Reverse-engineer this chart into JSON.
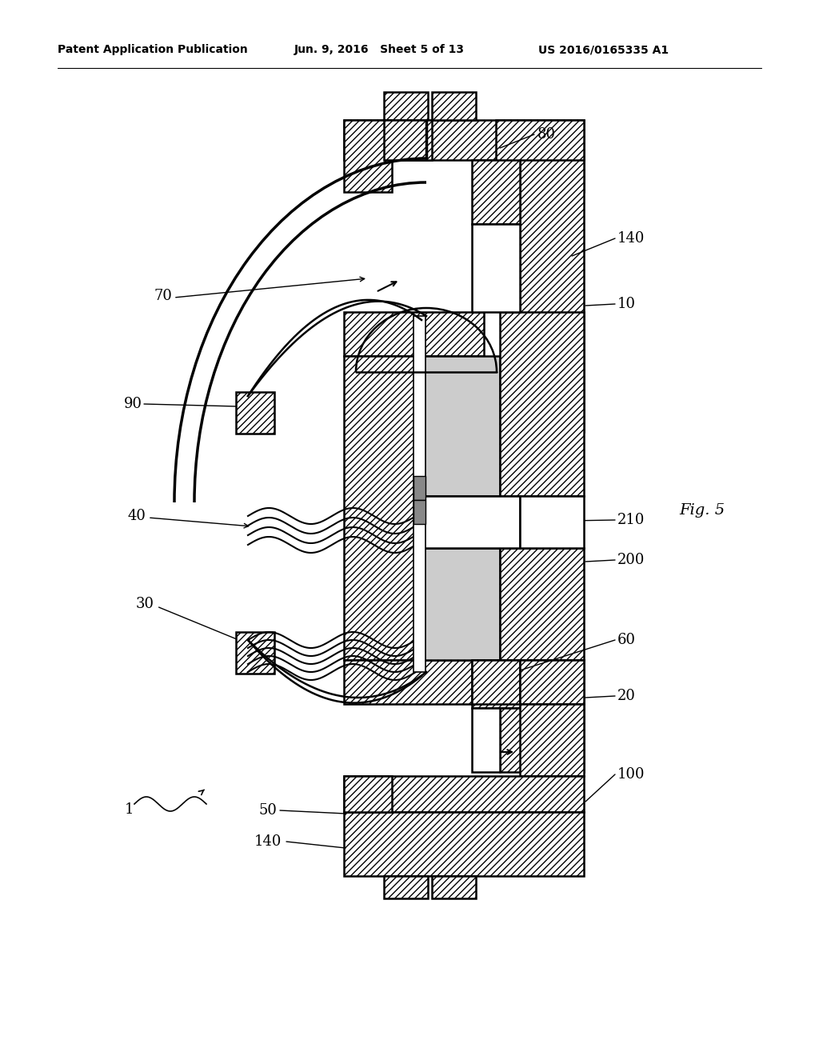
{
  "bg_color": "#ffffff",
  "header_left": "Patent Application Publication",
  "header_center": "Jun. 9, 2016   Sheet 5 of 13",
  "header_right": "US 2016/0165335 A1",
  "fig_label": "Fig. 5",
  "ref_fontsize": 13,
  "header_fontsize": 10
}
